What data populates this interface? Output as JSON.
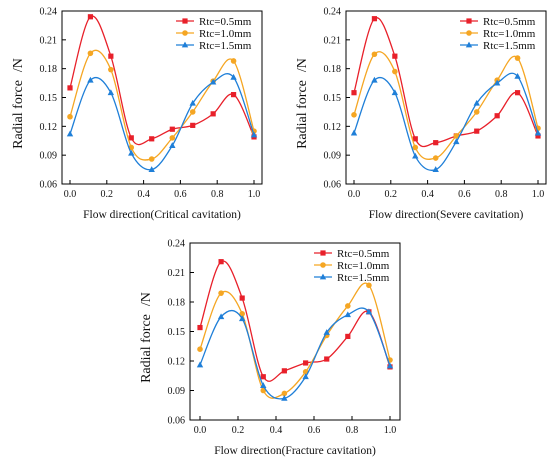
{
  "chart_data": [
    {
      "type": "line",
      "xlabel": "Flow direction(Critical cavitation)",
      "ylabel": "Radial force",
      "yunit": "/N",
      "xlim": [
        0.0,
        1.0
      ],
      "ylim": [
        0.06,
        0.24
      ],
      "xticks": [
        "0.0",
        "0.2",
        "0.4",
        "0.6",
        "0.8",
        "1.0"
      ],
      "yticks": [
        "0.06",
        "0.09",
        "0.12",
        "0.15",
        "0.18",
        "0.21",
        "0.24"
      ],
      "legend_position": "top-right",
      "grid": false,
      "x": [
        0.0,
        0.111,
        0.222,
        0.333,
        0.444,
        0.556,
        0.667,
        0.778,
        0.889,
        1.0
      ],
      "series": [
        {
          "name": "Rtc=0.5mm",
          "color": "#e8202a",
          "marker": "square",
          "values": [
            0.16,
            0.234,
            0.193,
            0.108,
            0.107,
            0.117,
            0.121,
            0.133,
            0.153,
            0.109
          ]
        },
        {
          "name": "Rtc=1.0mm",
          "color": "#f5a623",
          "marker": "circle",
          "values": [
            0.13,
            0.196,
            0.179,
            0.098,
            0.086,
            0.108,
            0.135,
            0.167,
            0.188,
            0.115
          ]
        },
        {
          "name": "Rtc=1.5mm",
          "color": "#1f7fd8",
          "marker": "triangle",
          "values": [
            0.112,
            0.168,
            0.155,
            0.092,
            0.075,
            0.1,
            0.144,
            0.166,
            0.171,
            0.111
          ]
        }
      ]
    },
    {
      "type": "line",
      "xlabel": "Flow direction(Severe cavitation)",
      "ylabel": "Radial force",
      "yunit": "/N",
      "xlim": [
        0.0,
        1.0
      ],
      "ylim": [
        0.06,
        0.24
      ],
      "xticks": [
        "0.0",
        "0.2",
        "0.4",
        "0.6",
        "0.8",
        "1.0"
      ],
      "yticks": [
        "0.06",
        "0.09",
        "0.12",
        "0.15",
        "0.18",
        "0.21",
        "0.24"
      ],
      "legend_position": "top-right",
      "grid": false,
      "x": [
        0.0,
        0.111,
        0.222,
        0.333,
        0.444,
        0.556,
        0.667,
        0.778,
        0.889,
        1.0
      ],
      "series": [
        {
          "name": "Rtc=0.5mm",
          "color": "#e8202a",
          "marker": "square",
          "values": [
            0.155,
            0.232,
            0.193,
            0.107,
            0.103,
            0.11,
            0.115,
            0.131,
            0.155,
            0.11
          ]
        },
        {
          "name": "Rtc=1.0mm",
          "color": "#f5a623",
          "marker": "circle",
          "values": [
            0.132,
            0.195,
            0.177,
            0.098,
            0.087,
            0.11,
            0.135,
            0.168,
            0.191,
            0.118
          ]
        },
        {
          "name": "Rtc=1.5mm",
          "color": "#1f7fd8",
          "marker": "triangle",
          "values": [
            0.113,
            0.168,
            0.155,
            0.089,
            0.075,
            0.104,
            0.144,
            0.165,
            0.172,
            0.113
          ]
        }
      ]
    },
    {
      "type": "line",
      "xlabel": "Flow direction(Fracture cavitation)",
      "ylabel": "Radial force",
      "yunit": "/N",
      "xlim": [
        0.0,
        1.0
      ],
      "ylim": [
        0.06,
        0.24
      ],
      "xticks": [
        "0.0",
        "0.2",
        "0.4",
        "0.6",
        "0.8",
        "1.0"
      ],
      "yticks": [
        "0.06",
        "0.09",
        "0.12",
        "0.15",
        "0.18",
        "0.21",
        "0.24"
      ],
      "legend_position": "top-right",
      "grid": false,
      "x": [
        0.0,
        0.111,
        0.222,
        0.333,
        0.444,
        0.556,
        0.667,
        0.778,
        0.889,
        1.0
      ],
      "series": [
        {
          "name": "Rtc=0.5mm",
          "color": "#e8202a",
          "marker": "square",
          "values": [
            0.154,
            0.221,
            0.184,
            0.104,
            0.11,
            0.118,
            0.122,
            0.145,
            0.17,
            0.114
          ]
        },
        {
          "name": "Rtc=1.0mm",
          "color": "#f5a623",
          "marker": "circle",
          "values": [
            0.132,
            0.189,
            0.168,
            0.09,
            0.087,
            0.109,
            0.146,
            0.176,
            0.197,
            0.121
          ]
        },
        {
          "name": "Rtc=1.5mm",
          "color": "#1f7fd8",
          "marker": "triangle",
          "values": [
            0.116,
            0.165,
            0.163,
            0.095,
            0.082,
            0.104,
            0.149,
            0.167,
            0.17,
            0.115
          ]
        }
      ]
    }
  ]
}
